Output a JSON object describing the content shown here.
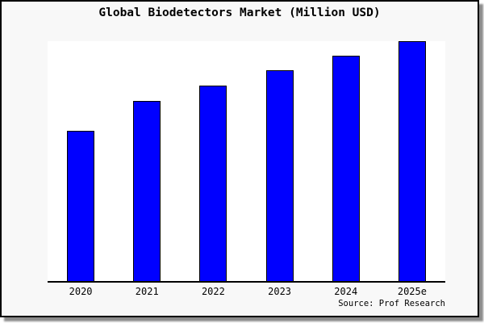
{
  "title": "Global Biodetectors Market (Million USD)",
  "source": "Source: Prof Research",
  "colors": {
    "figure_background": "#f8f8f8",
    "plot_background": "#ffffff",
    "bar_fill": "#0000ff",
    "bar_edge": "#000000",
    "axis": "#000000",
    "border": "#000000"
  },
  "chart_data": {
    "type": "bar",
    "title": "Global Biodetectors Market (Million USD)",
    "categories": [
      "2020",
      "2021",
      "2022",
      "2023",
      "2024",
      "2025e"
    ],
    "values": [
      62.5,
      75.2,
      81.6,
      87.8,
      94.1,
      100
    ],
    "values_note": "y-axis has no tick labels or gridlines; values estimated from bar heights, normalized so 2025e = 100",
    "xlabel": "",
    "ylabel": "",
    "ylim": [
      0,
      100
    ],
    "grid": false,
    "legend": false,
    "bar_color": "#0000ff",
    "bar_edge_color": "#000000",
    "source": "Source: Prof Research"
  }
}
